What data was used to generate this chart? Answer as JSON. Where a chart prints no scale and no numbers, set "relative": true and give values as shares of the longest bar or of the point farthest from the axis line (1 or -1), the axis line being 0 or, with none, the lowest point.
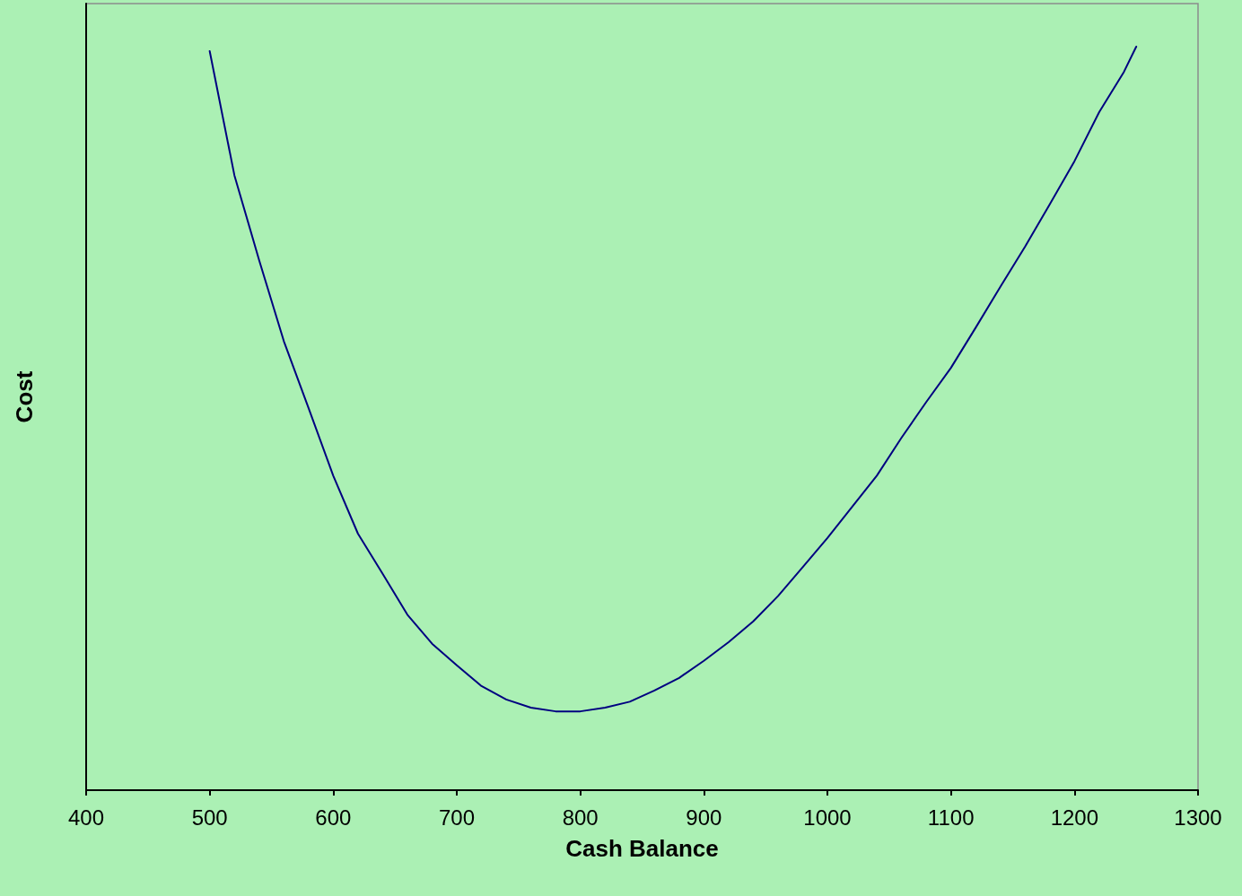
{
  "chart_data": {
    "type": "line",
    "xlabel": "Cash Balance",
    "ylabel": "Cost",
    "relative": true,
    "xlim": [
      400,
      1300
    ],
    "xticks": [
      400,
      500,
      600,
      700,
      800,
      900,
      1000,
      1100,
      1200,
      1300
    ],
    "grid": false,
    "marker": "none",
    "line_style": "solid",
    "series": [
      {
        "color": "#000080",
        "x": [
          500,
          520,
          540,
          560,
          580,
          600,
          620,
          640,
          660,
          680,
          700,
          720,
          740,
          760,
          780,
          800,
          820,
          840,
          860,
          880,
          900,
          920,
          940,
          960,
          980,
          1000,
          1020,
          1040,
          1060,
          1080,
          1100,
          1120,
          1140,
          1160,
          1180,
          1200,
          1220,
          1240,
          1250
        ],
        "values": [
          0.994,
          0.827,
          0.713,
          0.604,
          0.514,
          0.423,
          0.345,
          0.291,
          0.236,
          0.197,
          0.168,
          0.14,
          0.122,
          0.111,
          0.106,
          0.106,
          0.111,
          0.119,
          0.134,
          0.151,
          0.174,
          0.199,
          0.227,
          0.261,
          0.3,
          0.339,
          0.381,
          0.423,
          0.474,
          0.522,
          0.568,
          0.622,
          0.677,
          0.731,
          0.788,
          0.846,
          0.912,
          0.966,
          1.0
        ]
      }
    ]
  }
}
